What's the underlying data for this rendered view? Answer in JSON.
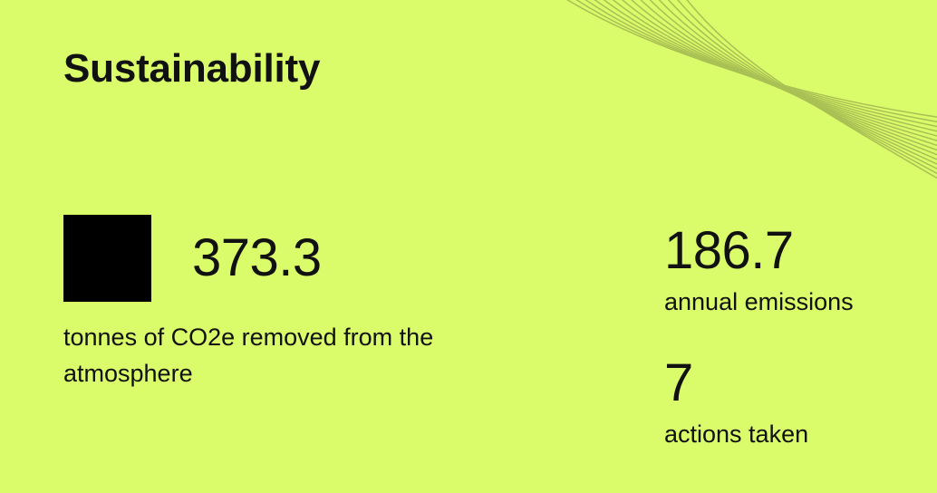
{
  "panel": {
    "title": "Sustainability",
    "background_color": "#dafb6a",
    "text_color": "#111111",
    "wave_color": "#a7bd53"
  },
  "primary_metric": {
    "value": "373.3",
    "caption": "tonnes of CO2e removed from the atmosphere",
    "logo_icon": "black-square-logo-icon"
  },
  "secondary_metrics": [
    {
      "value": "186.7",
      "label": "annual emissions"
    },
    {
      "value": "7",
      "label": "actions taken"
    }
  ]
}
